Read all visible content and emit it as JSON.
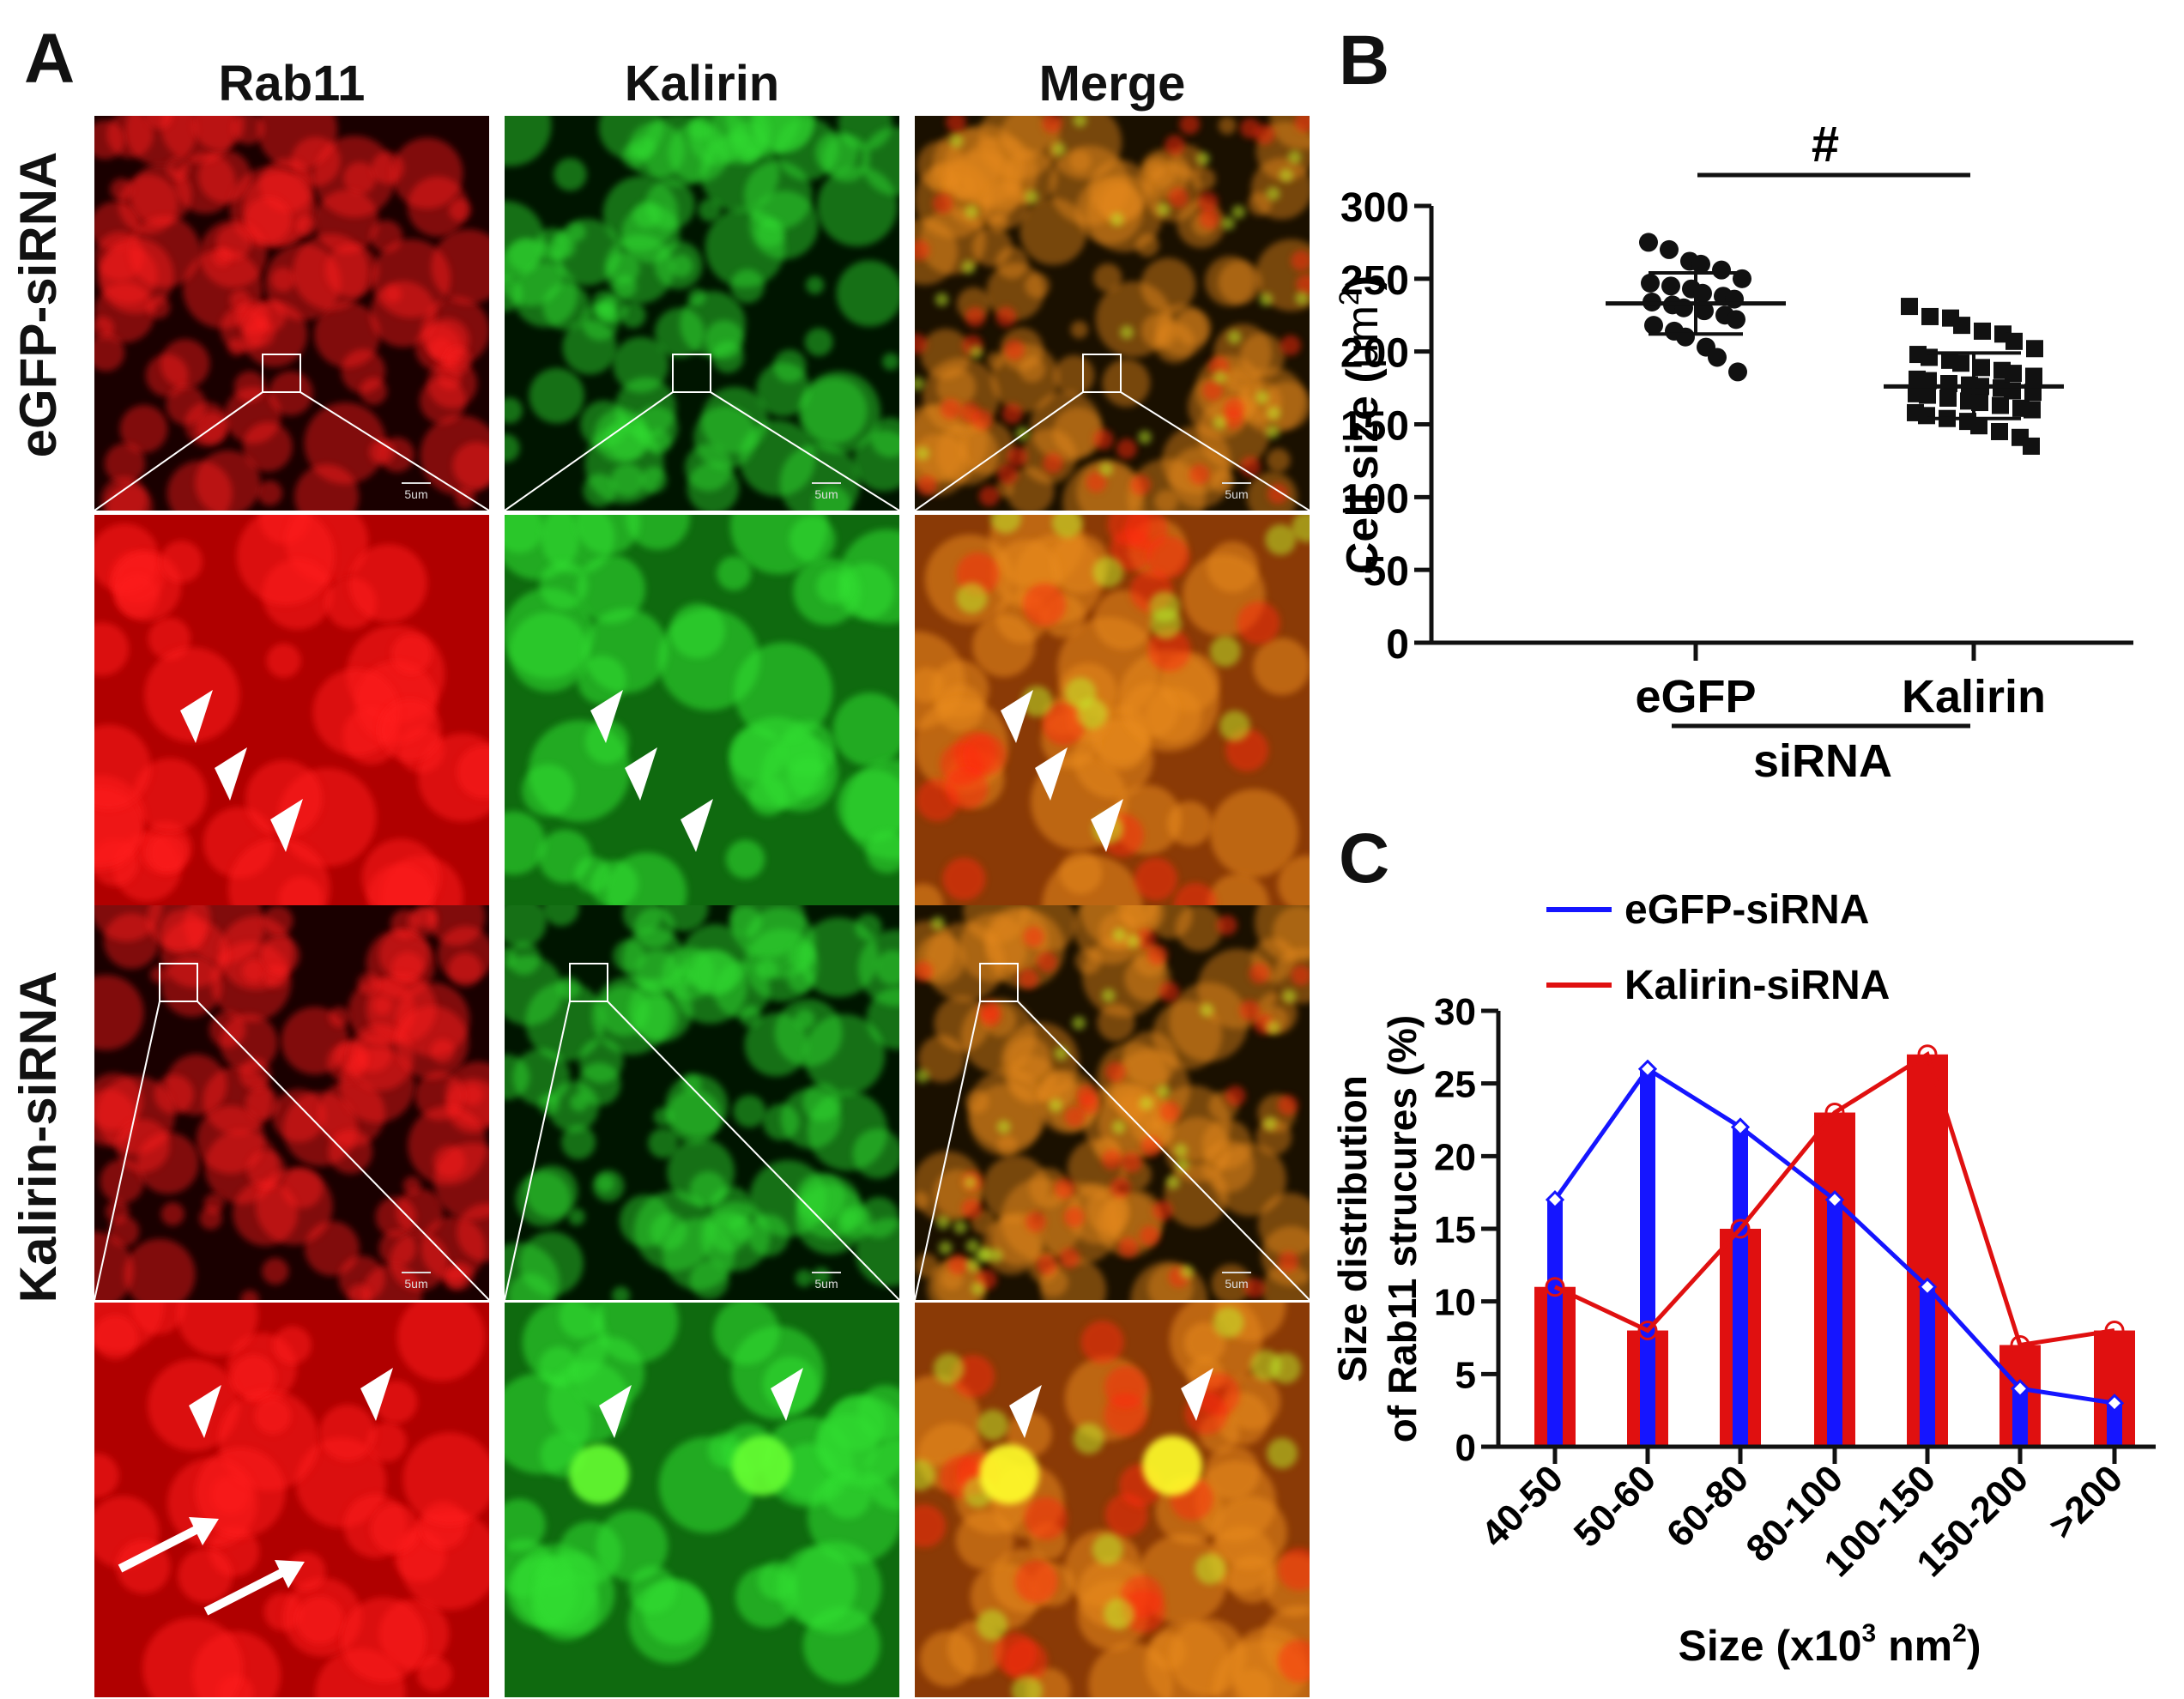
{
  "panels": {
    "a": "A",
    "b": "B",
    "c": "C"
  },
  "columns": [
    "Rab11",
    "Kalirin",
    "Merge"
  ],
  "rows": [
    "eGFP-siRNA",
    "Kalirin-siRNA"
  ],
  "scale_bar_label": "5um",
  "colors": {
    "red": "#e01010",
    "green": "#1fc21f",
    "blue": "#1515ff",
    "black": "#111111"
  },
  "chart_data": [
    {
      "type": "scatter",
      "panel": "B",
      "title": "",
      "ylabel": "Cell size (μm²)",
      "ylabel_text": "Cell size (",
      "ylabel_unit": "μm",
      "ylabel_sup": "2",
      "ylabel_close": ")",
      "ylim": [
        0,
        300
      ],
      "yticks": [
        "0",
        "50",
        "100",
        "150",
        "200",
        "250",
        "300"
      ],
      "categories": [
        "eGFP",
        "Kalirin"
      ],
      "group_label": "siRNA",
      "significance": "#",
      "series": [
        {
          "name": "eGFP",
          "marker": "circle",
          "mean": 233,
          "sd_low": 212,
          "sd_high": 254,
          "values": [
            275,
            270,
            262,
            260,
            256,
            250,
            247,
            245,
            243,
            240,
            238,
            236,
            234,
            232,
            230,
            228,
            225,
            222,
            218,
            214,
            210,
            203,
            196,
            186
          ]
        },
        {
          "name": "Kalirin",
          "marker": "square",
          "mean": 176,
          "sd_low": 154,
          "sd_high": 199,
          "values": [
            231,
            224,
            223,
            218,
            214,
            212,
            207,
            202,
            198,
            196,
            194,
            192,
            189,
            187,
            185,
            183,
            181,
            180,
            178,
            177,
            176,
            175,
            173,
            172,
            171,
            170,
            168,
            166,
            165,
            163,
            161,
            160,
            158,
            156,
            154,
            152,
            149,
            145,
            141,
            135
          ]
        }
      ]
    },
    {
      "type": "bar",
      "panel": "C",
      "title": "",
      "xlabel": "Size (x10³ nm²)",
      "xlabel_text": "Size (x10",
      "xlabel_sup1": "3",
      "xlabel_mid": " nm",
      "xlabel_sup2": "2",
      "xlabel_close": ")",
      "ylabel_line1": "Size distribution",
      "ylabel_line2": "of Rab11 strucures (%)",
      "ylim": [
        0,
        30
      ],
      "yticks": [
        "0",
        "5",
        "10",
        "15",
        "20",
        "25",
        "30"
      ],
      "categories": [
        "40-50",
        "50-60",
        "60-80",
        "80-100",
        "100-150",
        "150-200",
        ">200"
      ],
      "legend_position": "top-left",
      "series": [
        {
          "name": "eGFP-siRNA",
          "color": "#1515ff",
          "values": [
            17,
            26,
            22,
            17,
            11,
            4,
            3
          ]
        },
        {
          "name": "Kalirin-siRNA",
          "color": "#e01010",
          "values": [
            11,
            8,
            15,
            23,
            27,
            7,
            8
          ]
        }
      ]
    }
  ]
}
